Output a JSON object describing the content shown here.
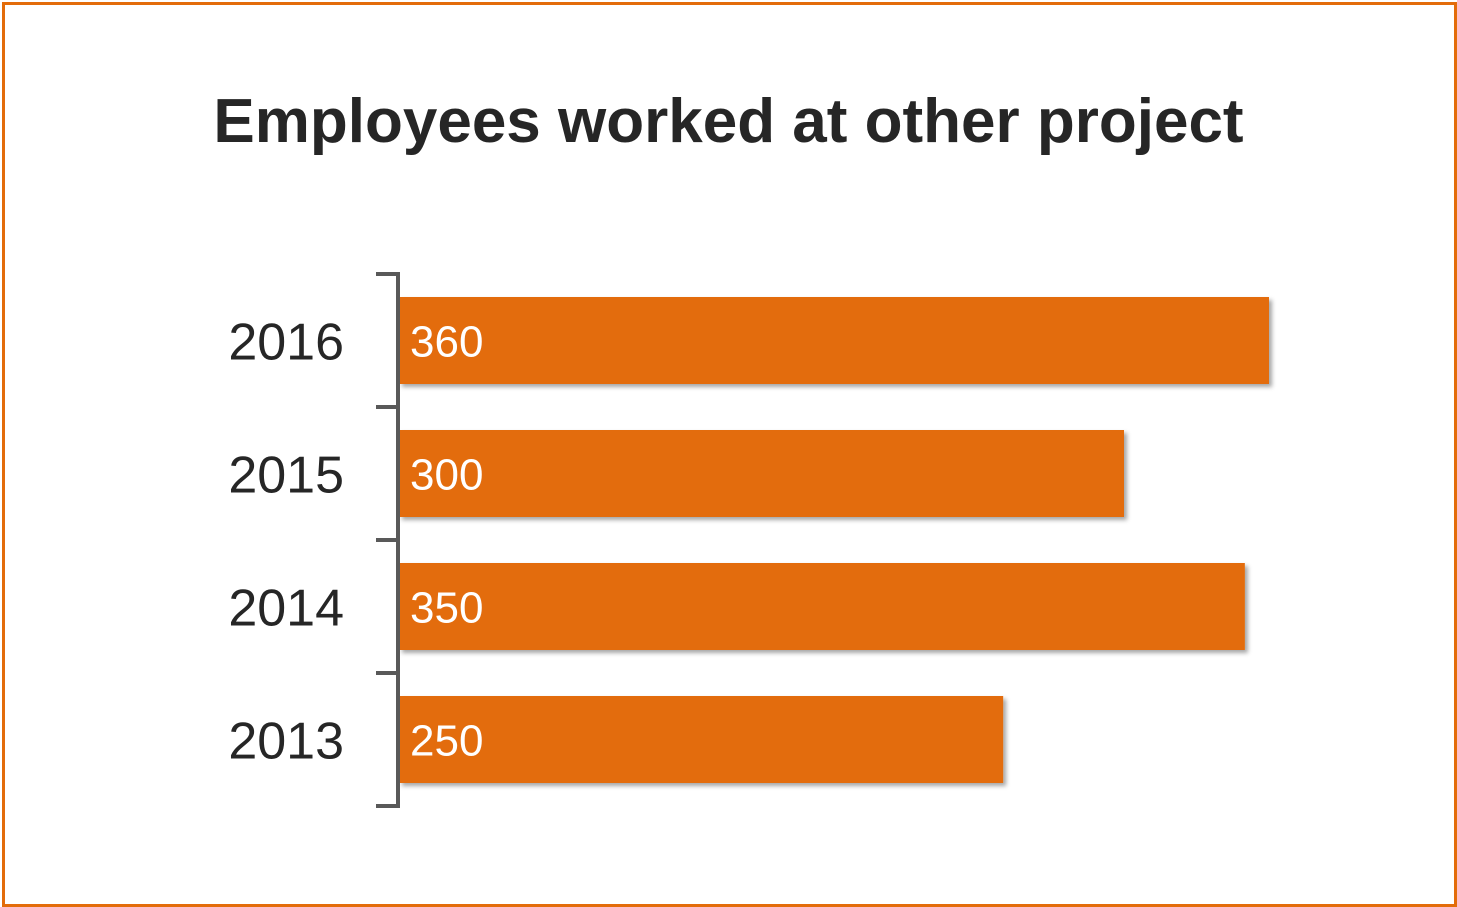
{
  "chart_data": {
    "type": "bar",
    "orientation": "horizontal",
    "title": "Employees worked at other project",
    "xlabel": "",
    "ylabel": "",
    "categories": [
      "2016",
      "2015",
      "2014",
      "2013"
    ],
    "values": [
      360,
      300,
      350,
      250
    ],
    "xlim": [
      0,
      360
    ],
    "grid": false,
    "legend": "none",
    "bar_color": "#e36c0a",
    "frame_color": "#e36c0a",
    "axis_color": "#595959",
    "data_label_color": "#ffffff"
  }
}
